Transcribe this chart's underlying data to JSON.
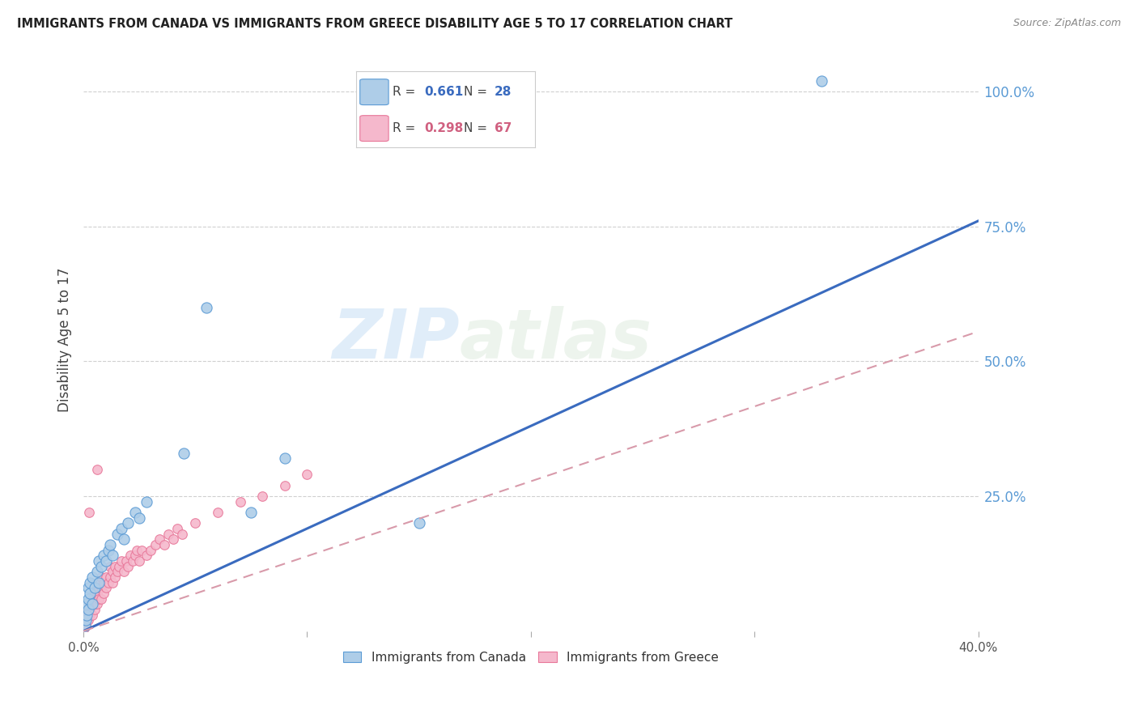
{
  "title": "IMMIGRANTS FROM CANADA VS IMMIGRANTS FROM GREECE DISABILITY AGE 5 TO 17 CORRELATION CHART",
  "source": "Source: ZipAtlas.com",
  "ylabel": "Disability Age 5 to 17",
  "legend_label_canada": "Immigrants from Canada",
  "legend_label_greece": "Immigrants from Greece",
  "watermark_zip": "ZIP",
  "watermark_atlas": "atlas",
  "canada_color": "#aecde8",
  "canada_color_dark": "#5b9bd5",
  "greece_color": "#f5b8cc",
  "greece_color_dark": "#e8789a",
  "canada_line_color": "#3a6bbf",
  "greece_line_color": "#d89aaa",
  "xlim": [
    0.0,
    0.4
  ],
  "ylim": [
    0.0,
    1.08
  ],
  "canada_R": "0.661",
  "canada_N": "28",
  "greece_R": "0.298",
  "greece_N": "67",
  "canada_line_x0": 0.0,
  "canada_line_y0": 0.0,
  "canada_line_x1": 0.4,
  "canada_line_y1": 0.76,
  "greece_line_x0": 0.0,
  "greece_line_y0": 0.0,
  "greece_line_x1": 0.4,
  "greece_line_y1": 0.555,
  "canada_scatter_x": [
    0.0005,
    0.001,
    0.001,
    0.0015,
    0.002,
    0.002,
    0.002,
    0.003,
    0.003,
    0.004,
    0.004,
    0.005,
    0.006,
    0.007,
    0.007,
    0.008,
    0.009,
    0.01,
    0.011,
    0.012,
    0.013,
    0.015,
    0.017,
    0.018,
    0.02,
    0.023,
    0.025,
    0.028
  ],
  "canada_scatter_y": [
    0.01,
    0.02,
    0.05,
    0.03,
    0.06,
    0.08,
    0.04,
    0.07,
    0.09,
    0.05,
    0.1,
    0.08,
    0.11,
    0.09,
    0.13,
    0.12,
    0.14,
    0.13,
    0.15,
    0.16,
    0.14,
    0.18,
    0.19,
    0.17,
    0.2,
    0.22,
    0.21,
    0.24
  ],
  "canada_outlier_x": [
    0.045,
    0.055,
    0.075,
    0.09,
    0.15,
    0.33
  ],
  "canada_outlier_y": [
    0.33,
    0.6,
    0.22,
    0.32,
    0.2,
    1.02
  ],
  "greece_scatter_x": [
    0.0003,
    0.0005,
    0.001,
    0.001,
    0.001,
    0.0015,
    0.0015,
    0.002,
    0.002,
    0.002,
    0.003,
    0.003,
    0.003,
    0.004,
    0.004,
    0.004,
    0.005,
    0.005,
    0.005,
    0.006,
    0.006,
    0.007,
    0.007,
    0.007,
    0.008,
    0.008,
    0.008,
    0.009,
    0.009,
    0.01,
    0.01,
    0.011,
    0.012,
    0.012,
    0.013,
    0.013,
    0.014,
    0.014,
    0.015,
    0.016,
    0.017,
    0.018,
    0.019,
    0.02,
    0.021,
    0.022,
    0.023,
    0.024,
    0.025,
    0.026,
    0.028,
    0.03,
    0.032,
    0.034,
    0.036,
    0.038,
    0.04,
    0.042,
    0.044,
    0.05,
    0.06,
    0.07,
    0.08,
    0.09,
    0.1,
    0.0025,
    0.006
  ],
  "greece_scatter_y": [
    0.005,
    0.01,
    0.01,
    0.02,
    0.03,
    0.02,
    0.03,
    0.02,
    0.03,
    0.04,
    0.03,
    0.04,
    0.05,
    0.03,
    0.05,
    0.06,
    0.04,
    0.05,
    0.07,
    0.05,
    0.07,
    0.06,
    0.08,
    0.09,
    0.06,
    0.08,
    0.1,
    0.07,
    0.09,
    0.08,
    0.1,
    0.09,
    0.1,
    0.12,
    0.09,
    0.11,
    0.1,
    0.12,
    0.11,
    0.12,
    0.13,
    0.11,
    0.13,
    0.12,
    0.14,
    0.13,
    0.14,
    0.15,
    0.13,
    0.15,
    0.14,
    0.15,
    0.16,
    0.17,
    0.16,
    0.18,
    0.17,
    0.19,
    0.18,
    0.2,
    0.22,
    0.24,
    0.25,
    0.27,
    0.29,
    0.22,
    0.3
  ]
}
